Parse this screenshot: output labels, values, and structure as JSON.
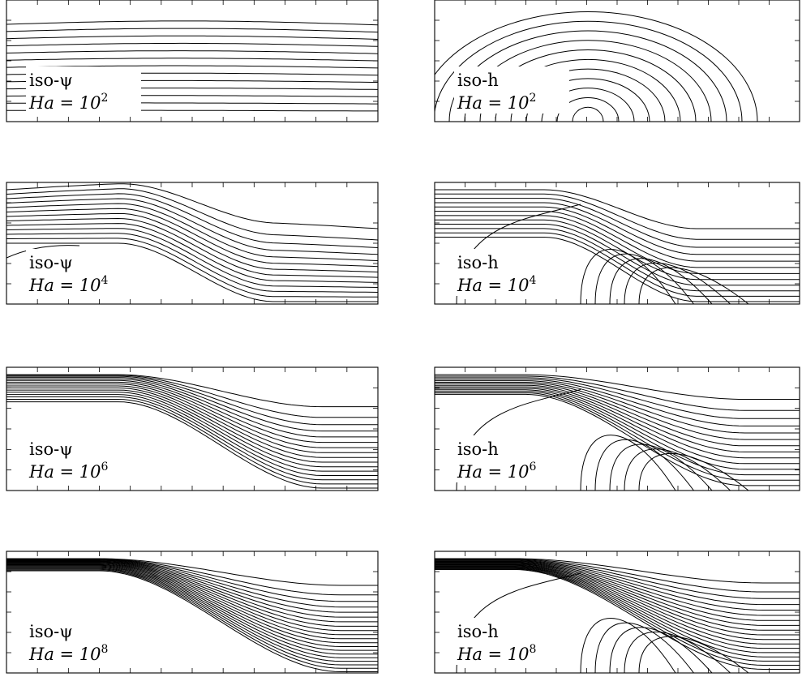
{
  "panels": [
    {
      "field": "psi",
      "label": "iso-ψ",
      "ha_base": "Ha = 10",
      "ha_exp": "2"
    },
    {
      "field": "h",
      "label": "iso-h",
      "ha_base": "Ha = 10",
      "ha_exp": "2"
    },
    {
      "field": "psi",
      "label": "iso-ψ",
      "ha_base": "Ha = 10",
      "ha_exp": "4"
    },
    {
      "field": "h",
      "label": "iso-h",
      "ha_base": "Ha = 10",
      "ha_exp": "4"
    },
    {
      "field": "psi",
      "label": "iso-ψ",
      "ha_base": "Ha = 10",
      "ha_exp": "6"
    },
    {
      "field": "h",
      "label": "iso-h",
      "ha_base": "Ha = 10",
      "ha_exp": "6"
    },
    {
      "field": "psi",
      "label": "iso-ψ",
      "ha_base": "Ha = 10",
      "ha_exp": "8"
    },
    {
      "field": "h",
      "label": "iso-h",
      "ha_base": "Ha = 10",
      "ha_exp": "8"
    }
  ]
}
